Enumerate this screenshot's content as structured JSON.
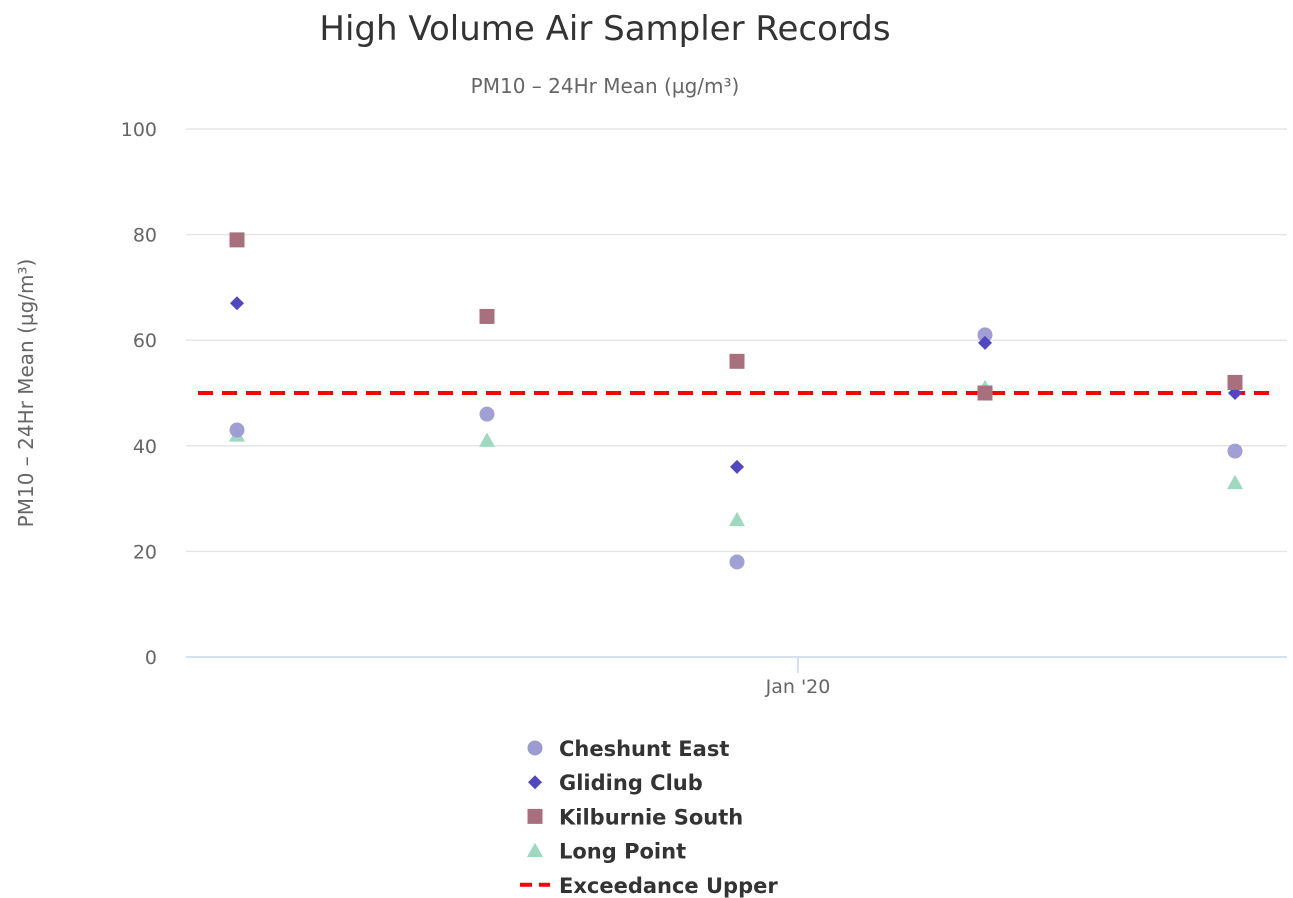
{
  "chart_data": {
    "type": "scatter",
    "title": "High Volume Air Sampler Records",
    "subtitle": "PM10 – 24Hr Mean (µg/m³)",
    "ylabel": "PM10 – 24Hr Mean (µg/m³)",
    "ylim": [
      0,
      100
    ],
    "y_ticks": [
      0,
      20,
      40,
      60,
      80,
      100
    ],
    "x_tick_labels": [
      "Jan '20"
    ],
    "x_categories": [
      1,
      2,
      3,
      4,
      5
    ],
    "grid": true,
    "legend_position": "bottom",
    "series": [
      {
        "name": "Cheshunt East",
        "marker": "circle",
        "color": "#9d9ad2",
        "values": [
          43,
          46,
          18,
          61,
          39
        ]
      },
      {
        "name": "Gliding Club",
        "marker": "diamond",
        "color": "#5147c2",
        "values": [
          67,
          null,
          36,
          59.5,
          50
        ]
      },
      {
        "name": "Kilburnie South",
        "marker": "square",
        "color": "#a8707f",
        "values": [
          79,
          64.5,
          56,
          50,
          52
        ]
      },
      {
        "name": "Long Point",
        "marker": "triangle",
        "color": "#9dd9bf",
        "values": [
          42,
          41,
          26,
          51,
          33
        ]
      }
    ],
    "reference_line": {
      "name": "Exceedance Upper",
      "value": 50,
      "color": "#ff0000",
      "style": "dashed"
    }
  }
}
